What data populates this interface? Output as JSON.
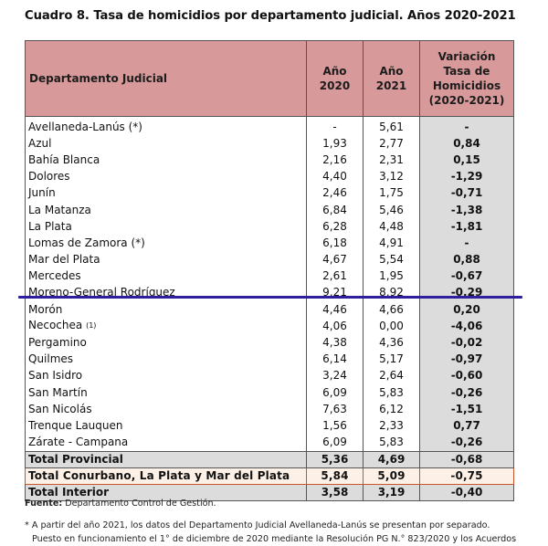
{
  "title": "Cuadro 8. Tasa de homicidios por departamento judicial. Años 2020-2021",
  "headers": {
    "department": "Departamento Judicial",
    "y2020_line1": "Año",
    "y2020_line2": "2020",
    "y2021_line1": "Año",
    "y2021_line2": "2021",
    "var_line1": "Variación",
    "var_line2": "Tasa de",
    "var_line3": "Homicidios",
    "var_line4": "(2020-2021)"
  },
  "rows": [
    {
      "name": "Avellaneda-Lanús (*)",
      "mark": "",
      "y2020": "-",
      "y2021": "5,61",
      "variation": "-"
    },
    {
      "name": "Azul",
      "mark": "",
      "y2020": "1,93",
      "y2021": "2,77",
      "variation": "0,84"
    },
    {
      "name": "Bahía Blanca",
      "mark": "",
      "y2020": "2,16",
      "y2021": "2,31",
      "variation": "0,15"
    },
    {
      "name": "Dolores",
      "mark": "",
      "y2020": "4,40",
      "y2021": "3,12",
      "variation": "-1,29"
    },
    {
      "name": "Junín",
      "mark": "",
      "y2020": "2,46",
      "y2021": "1,75",
      "variation": "-0,71"
    },
    {
      "name": "La Matanza",
      "mark": "",
      "y2020": "6,84",
      "y2021": "5,46",
      "variation": "-1,38"
    },
    {
      "name": "La Plata",
      "mark": "",
      "y2020": "6,28",
      "y2021": "4,48",
      "variation": "-1,81"
    },
    {
      "name": "Lomas de Zamora (*)",
      "mark": "",
      "y2020": "6,18",
      "y2021": "4,91",
      "variation": "-"
    },
    {
      "name": "Mar del Plata",
      "mark": "",
      "y2020": "4,67",
      "y2021": "5,54",
      "variation": "0,88"
    },
    {
      "name": "Mercedes",
      "mark": "",
      "y2020": "2,61",
      "y2021": "1,95",
      "variation": "-0,67"
    },
    {
      "name": "Moreno-General Rodríguez",
      "mark": "",
      "y2020": "9,21",
      "y2021": "8,92",
      "variation": "-0,29"
    },
    {
      "name": "Morón",
      "mark": "",
      "y2020": "4,46",
      "y2021": "4,66",
      "variation": "0,20"
    },
    {
      "name": "Necochea",
      "mark": "(1)",
      "y2020": "4,06",
      "y2021": "0,00",
      "variation": "-4,06"
    },
    {
      "name": "Pergamino",
      "mark": "",
      "y2020": "4,38",
      "y2021": "4,36",
      "variation": "-0,02"
    },
    {
      "name": "Quilmes",
      "mark": "",
      "y2020": "6,14",
      "y2021": "5,17",
      "variation": "-0,97"
    },
    {
      "name": "San Isidro",
      "mark": "",
      "y2020": "3,24",
      "y2021": "2,64",
      "variation": "-0,60"
    },
    {
      "name": "San Martín",
      "mark": "",
      "y2020": "6,09",
      "y2021": "5,83",
      "variation": "-0,26"
    },
    {
      "name": "San Nicolás",
      "mark": "",
      "y2020": "7,63",
      "y2021": "6,12",
      "variation": "-1,51"
    },
    {
      "name": "Trenque Lauquen",
      "mark": "",
      "y2020": "1,56",
      "y2021": "2,33",
      "variation": "0,77"
    },
    {
      "name": "Zárate - Campana",
      "mark": "",
      "y2020": "6,09",
      "y2021": "5,83",
      "variation": "-0,26"
    }
  ],
  "totals": {
    "provincial": {
      "name": "Total Provincial",
      "y2020": "5,36",
      "y2021": "4,69",
      "variation": "-0,68"
    },
    "conurbano": {
      "name": "Total Conurbano, La Plata y Mar del Plata",
      "y2020": "5,84",
      "y2021": "5,09",
      "variation": "-0,75"
    },
    "interior": {
      "name": "Total Interior",
      "y2020": "3,58",
      "y2021": "3,19",
      "variation": "-0,40"
    }
  },
  "source": {
    "label": "Fuente:",
    "text": " Departamento Control de Gestión."
  },
  "footnote": {
    "line1": "* A partir del año 2021, los datos del Departamento Judicial Avellaneda-Lanús se presentan por separado.",
    "line2": "Puesto en funcionamiento el 1° de diciembre de 2020 mediante la Resolución PG N.° 823/2020 y los Acuerdos"
  },
  "colors": {
    "header_bg": "#d7999a",
    "variation_bg": "#dcdcdc",
    "divider_line": "#2d1f9e",
    "conurbano_border": "#c8562a"
  }
}
